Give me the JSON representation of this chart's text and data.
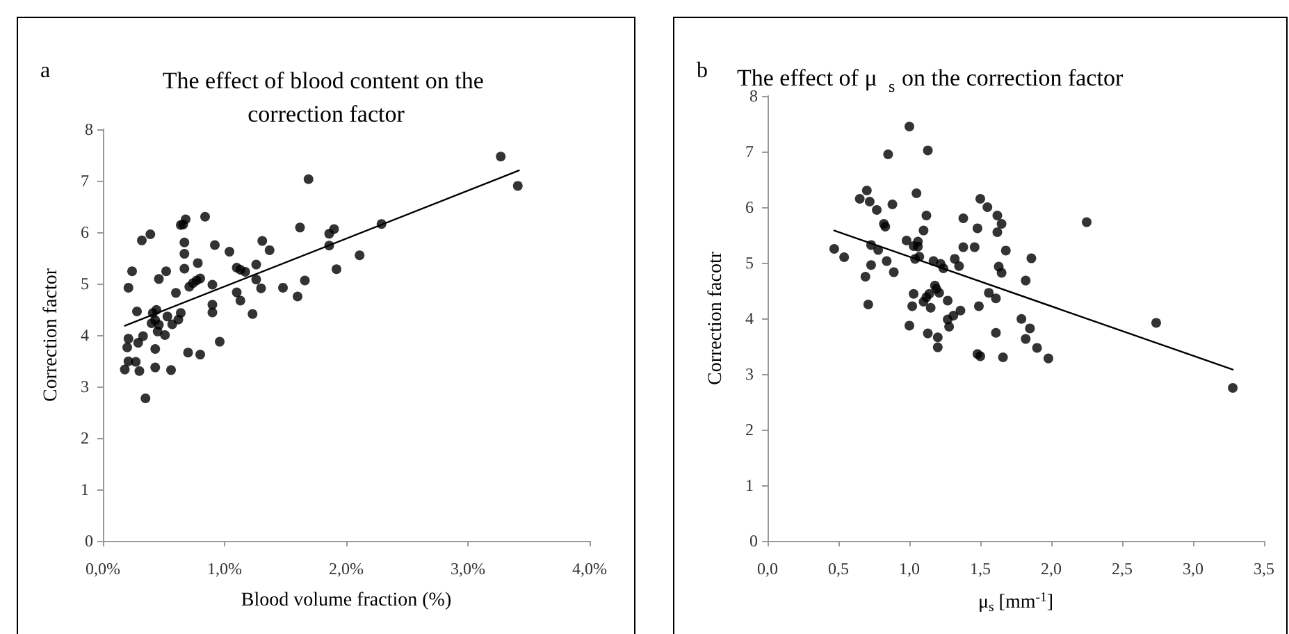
{
  "chart_data": [
    {
      "type": "scatter",
      "title": "The effect of blood content on the correction factor",
      "annotations": [
        "a"
      ],
      "xlabel": "Blood volume fraction (%)",
      "ylabel": "Correction factor",
      "marker": "circle",
      "xlim": [
        0,
        4
      ],
      "xticks": [
        {
          "value": 0,
          "label": "0,0%"
        },
        {
          "value": 1,
          "label": "1,0%"
        },
        {
          "value": 2,
          "label": "2,0%"
        },
        {
          "value": 3,
          "label": "3,0%"
        },
        {
          "value": 4,
          "label": "4,0%"
        }
      ],
      "ylim": [
        0,
        8
      ],
      "yticks": [
        0,
        1,
        2,
        3,
        4,
        5,
        6,
        7,
        8
      ],
      "series": [
        {
          "type": "scatter",
          "color": "#000000",
          "x": [
            0.32,
            0.39,
            0.64,
            0.67,
            0.67,
            0.92,
            1.04,
            1.31,
            1.37,
            0.21,
            0.24,
            0.28,
            0.46,
            0.52,
            0.6,
            0.67,
            0.78,
            0.71,
            0.74,
            0.77,
            0.8,
            0.9,
            0.9,
            0.9,
            1.1,
            1.13,
            1.17,
            1.26,
            1.26,
            1.3,
            1.1,
            1.13,
            1.23,
            1.48,
            1.6,
            1.66,
            0.18,
            0.21,
            0.2,
            0.21,
            0.27,
            0.29,
            0.3,
            0.33,
            0.35,
            0.41,
            0.44,
            0.4,
            0.43,
            0.46,
            0.45,
            0.43,
            0.43,
            0.51,
            0.53,
            0.56,
            0.57,
            0.62,
            0.64,
            0.7,
            0.8,
            0.96,
            0.66,
            0.68,
            0.84,
            1.69,
            3.27,
            3.41,
            2.29,
            1.62,
            1.86,
            1.9,
            1.86,
            2.11,
            1.92
          ],
          "values": [
            5.84,
            5.96,
            6.14,
            5.8,
            5.58,
            5.75,
            5.62,
            5.83,
            5.65,
            4.92,
            5.24,
            4.46,
            5.09,
            5.24,
            4.82,
            5.29,
            5.4,
            4.94,
            5.01,
            5.06,
            5.1,
            4.98,
            4.59,
            4.44,
            5.31,
            5.27,
            5.23,
            5.37,
            5.08,
            4.91,
            4.83,
            4.67,
            4.41,
            4.92,
            4.75,
            5.06,
            3.33,
            3.93,
            3.76,
            3.49,
            3.48,
            3.85,
            3.3,
            3.98,
            2.77,
            4.43,
            4.49,
            4.23,
            4.29,
            4.2,
            4.07,
            3.73,
            3.37,
            4,
            4.36,
            3.32,
            4.21,
            4.3,
            4.43,
            3.66,
            3.62,
            3.87,
            6.15,
            6.25,
            6.3,
            7.03,
            7.47,
            6.9,
            6.16,
            6.09,
            5.97,
            6.06,
            5.74,
            5.55,
            5.28
          ]
        },
        {
          "type": "line",
          "color": "#000000",
          "marker": "none",
          "x": [
            0.18,
            3.42
          ],
          "values": [
            4.18,
            7.2
          ]
        }
      ]
    },
    {
      "type": "scatter",
      "title": "The effect of μ$_{s}$ on the correction factor",
      "annotations": [
        "b"
      ],
      "xlabel": "μ$_{s}$ [mm$^{-1}$]",
      "ylabel": "Correction facotr",
      "marker": "circle",
      "xlim": [
        0,
        3.5
      ],
      "xticks": [
        {
          "value": 0,
          "label": "0,0"
        },
        {
          "value": 0.5,
          "label": "0,5"
        },
        {
          "value": 1,
          "label": "1,0"
        },
        {
          "value": 1.5,
          "label": "1,5"
        },
        {
          "value": 2,
          "label": "2,0"
        },
        {
          "value": 2.5,
          "label": "2,5"
        },
        {
          "value": 3,
          "label": "3,0"
        },
        {
          "value": 3.5,
          "label": "3,5"
        }
      ],
      "ylim": [
        0,
        8
      ],
      "yticks": [
        0,
        1,
        2,
        3,
        4,
        5,
        6,
        7,
        8
      ],
      "series": [
        {
          "type": "scatter",
          "color": "#000000",
          "x": [
            0.47,
            0.54,
            0.73,
            0.78,
            0.83,
            0.73,
            0.69,
            0.71,
            0.84,
            0.89,
            0.98,
            1.03,
            1.06,
            1.06,
            1.1,
            1.04,
            1.07,
            1.0,
            1.03,
            1.02,
            1.1,
            1.12,
            1.14,
            1.13,
            1.15,
            1.17,
            1.18,
            1.19,
            1.21,
            1.22,
            1.24,
            1.2,
            1.2,
            1.27,
            1.27,
            1.28,
            1.31,
            1.32,
            1.35,
            1.36,
            1.38,
            1.46,
            1.48,
            1.49,
            1.48,
            1.5,
            1.56,
            1.62,
            1.61,
            1.61,
            1.63,
            1.65,
            1.66,
            1.68,
            1.79,
            1.82,
            1.82,
            1.85,
            1.86,
            1.9,
            1.98,
            2.25,
            2.74,
            3.28,
            0.65,
            0.7,
            0.72,
            0.77,
            0.82,
            0.88,
            1.05,
            1.12,
            1.38,
            1.5,
            1.55,
            1.62,
            1.65,
            0.85,
            1.0,
            1.13
          ],
          "values": [
            5.25,
            5.1,
            5.32,
            5.23,
            5.65,
            4.96,
            4.75,
            4.25,
            5.03,
            4.83,
            5.4,
            5.3,
            5.38,
            5.29,
            5.58,
            5.07,
            5.11,
            3.87,
            4.44,
            4.22,
            4.3,
            4.38,
            4.44,
            3.73,
            4.19,
            5.03,
            4.59,
            4.53,
            4.46,
            4.98,
            4.9,
            3.66,
            3.48,
            4.32,
            3.98,
            3.85,
            4.05,
            5.07,
            4.94,
            4.14,
            5.28,
            5.28,
            5.62,
            4.22,
            3.36,
            3.32,
            4.46,
            5.55,
            4.36,
            3.74,
            4.93,
            4.82,
            3.3,
            5.22,
            3.99,
            4.68,
            3.63,
            3.82,
            5.08,
            3.47,
            3.28,
            5.73,
            3.92,
            2.75,
            6.15,
            6.3,
            6.1,
            5.95,
            5.7,
            6.05,
            6.25,
            5.85,
            5.8,
            6.15,
            6,
            5.85,
            5.7,
            6.95,
            7.45,
            7.02
          ]
        },
        {
          "type": "line",
          "color": "#000000",
          "marker": "none",
          "x": [
            0.47,
            3.28
          ],
          "values": [
            5.58,
            3.08
          ]
        }
      ]
    }
  ]
}
